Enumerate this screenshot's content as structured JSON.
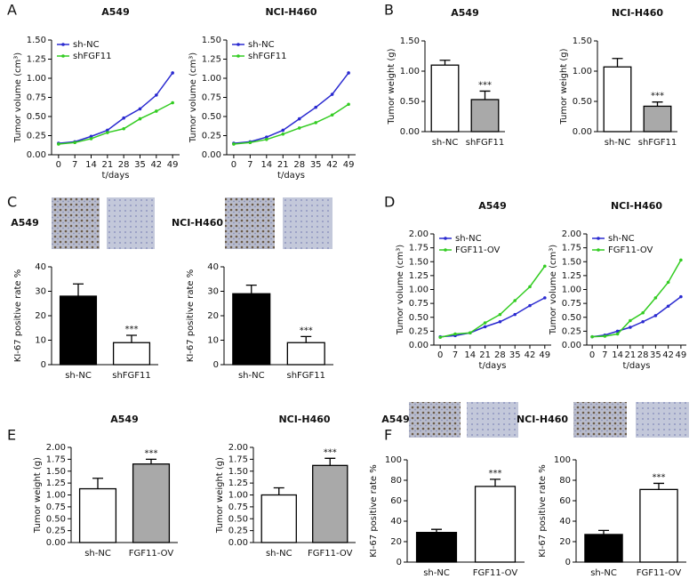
{
  "panel_labels": [
    "A",
    "B",
    "C",
    "D",
    "E",
    "F"
  ],
  "chart_data": [
    {
      "type": "line",
      "title": "A549",
      "xlabel": "t/days",
      "ylabel": "Tumor volume (cm³)",
      "legend": "upper left",
      "x": [
        0,
        7,
        14,
        21,
        28,
        35,
        42,
        49
      ],
      "xlim": [
        -3,
        52
      ],
      "xticks": [
        0,
        7,
        14,
        21,
        28,
        35,
        42,
        49
      ],
      "ylim": [
        0,
        1.5
      ],
      "yticks": [
        {
          "value": 0,
          "label": "0.00"
        },
        {
          "value": 0.25,
          "label": "0.25"
        },
        {
          "value": 0.5,
          "label": "0.50"
        },
        {
          "value": 0.75,
          "label": "0.75"
        },
        {
          "value": 1,
          "label": "1.00"
        },
        {
          "value": 1.25,
          "label": "1.25"
        },
        {
          "value": 1.5,
          "label": "1.50"
        }
      ],
      "series": [
        {
          "name": "sh-NC",
          "color": "#2a2ad0",
          "values": [
            0.15,
            0.17,
            0.24,
            0.32,
            0.48,
            0.6,
            0.78,
            1.07
          ]
        },
        {
          "name": "shFGF11",
          "color": "#33cc22",
          "values": [
            0.14,
            0.16,
            0.21,
            0.29,
            0.34,
            0.47,
            0.57,
            0.68
          ]
        }
      ]
    },
    {
      "type": "line",
      "title": "NCI-H460",
      "xlabel": "t/days",
      "ylabel": "Tumor volume (cm³)",
      "legend": "upper left",
      "x": [
        0,
        7,
        14,
        21,
        28,
        35,
        42,
        49
      ],
      "xlim": [
        -3,
        52
      ],
      "xticks": [
        0,
        7,
        14,
        21,
        28,
        35,
        42,
        49
      ],
      "ylim": [
        0,
        1.5
      ],
      "yticks": [
        {
          "value": 0,
          "label": "0.00"
        },
        {
          "value": 0.25,
          "label": "0.25"
        },
        {
          "value": 0.5,
          "label": "0.50"
        },
        {
          "value": 0.75,
          "label": "0.75"
        },
        {
          "value": 1,
          "label": "1.00"
        },
        {
          "value": 1.25,
          "label": "1.25"
        },
        {
          "value": 1.5,
          "label": "1.50"
        }
      ],
      "series": [
        {
          "name": "sh-NC",
          "color": "#2a2ad0",
          "values": [
            0.15,
            0.17,
            0.23,
            0.32,
            0.47,
            0.62,
            0.79,
            1.07
          ]
        },
        {
          "name": "shFGF11",
          "color": "#33cc22",
          "values": [
            0.14,
            0.16,
            0.2,
            0.27,
            0.35,
            0.42,
            0.52,
            0.66
          ]
        }
      ]
    },
    {
      "type": "bar",
      "title": "A549",
      "ylabel": "Tumor weight (g)",
      "annotation": "***",
      "categories": [
        "sh-NC",
        "shFGF11"
      ],
      "values": [
        1.1,
        0.53
      ],
      "errors": [
        0.08,
        0.14
      ],
      "colors": [
        "#ffffff",
        "#a9a9a9"
      ],
      "ylim": [
        0,
        1.5
      ],
      "yticks": [
        {
          "value": 0,
          "label": "0.00"
        },
        {
          "value": 0.5,
          "label": "0.50"
        },
        {
          "value": 1,
          "label": "1.00"
        },
        {
          "value": 1.5,
          "label": "1.50"
        }
      ]
    },
    {
      "type": "bar",
      "title": "NCI-H460",
      "ylabel": "Tumor weight (g)",
      "annotation": "***",
      "categories": [
        "sh-NC",
        "shFGF11"
      ],
      "values": [
        1.07,
        0.42
      ],
      "errors": [
        0.14,
        0.07
      ],
      "colors": [
        "#ffffff",
        "#a9a9a9"
      ],
      "ylim": [
        0,
        1.5
      ],
      "yticks": [
        {
          "value": 0,
          "label": "0.00"
        },
        {
          "value": 0.5,
          "label": "0.50"
        },
        {
          "value": 1,
          "label": "1.00"
        },
        {
          "value": 1.5,
          "label": "1.50"
        }
      ]
    },
    {
      "type": "bar",
      "image_label": "A549",
      "ylabel": "KI-67 positive rate %",
      "annotation": "***",
      "categories": [
        "sh-NC",
        "shFGF11"
      ],
      "values": [
        28,
        9
      ],
      "errors": [
        5,
        3
      ],
      "colors": [
        "#000000",
        "#ffffff"
      ],
      "ylim": [
        0,
        40
      ],
      "yticks": [
        0,
        10,
        20,
        30,
        40
      ]
    },
    {
      "type": "bar",
      "image_label": "NCI-H460",
      "ylabel": "KI-67 positive rate %",
      "annotation": "***",
      "categories": [
        "sh-NC",
        "shFGF11"
      ],
      "values": [
        29,
        9
      ],
      "errors": [
        3.5,
        2.5
      ],
      "colors": [
        "#000000",
        "#ffffff"
      ],
      "ylim": [
        0,
        40
      ],
      "yticks": [
        0,
        10,
        20,
        30,
        40
      ]
    },
    {
      "type": "line",
      "title": "A549",
      "xlabel": "t/days",
      "ylabel": "Tumor volume (cm³)",
      "legend": "upper left",
      "x": [
        0,
        7,
        14,
        21,
        28,
        35,
        42,
        49
      ],
      "xlim": [
        -3,
        52
      ],
      "xticks": [
        0,
        7,
        14,
        21,
        28,
        35,
        42,
        49
      ],
      "ylim": [
        0,
        2
      ],
      "yticks": [
        {
          "value": 0,
          "label": "0.00"
        },
        {
          "value": 0.25,
          "label": "0.25"
        },
        {
          "value": 0.5,
          "label": "0.50"
        },
        {
          "value": 0.75,
          "label": "0.75"
        },
        {
          "value": 1,
          "label": "1.00"
        },
        {
          "value": 1.25,
          "label": "1.25"
        },
        {
          "value": 1.5,
          "label": "1.50"
        },
        {
          "value": 1.75,
          "label": "1.75"
        },
        {
          "value": 2,
          "label": "2.00"
        }
      ],
      "series": [
        {
          "name": "sh-NC",
          "color": "#2a2ad0",
          "values": [
            0.15,
            0.17,
            0.22,
            0.33,
            0.42,
            0.55,
            0.71,
            0.85
          ]
        },
        {
          "name": "FGF11-OV",
          "color": "#33cc22",
          "values": [
            0.14,
            0.2,
            0.22,
            0.4,
            0.55,
            0.8,
            1.05,
            1.42
          ]
        }
      ]
    },
    {
      "type": "line",
      "title": "NCI-H460",
      "xlabel": "t/days",
      "ylabel": "Tumor volume (cm³)",
      "legend": "upper left",
      "x": [
        0,
        7,
        14,
        21,
        28,
        35,
        42,
        49
      ],
      "xlim": [
        -3,
        52
      ],
      "xticks": [
        0,
        7,
        14,
        21,
        28,
        35,
        42,
        49
      ],
      "ylim": [
        0,
        2
      ],
      "yticks": [
        {
          "value": 0,
          "label": "0.00"
        },
        {
          "value": 0.25,
          "label": "0.25"
        },
        {
          "value": 0.5,
          "label": "0.50"
        },
        {
          "value": 0.75,
          "label": "0.75"
        },
        {
          "value": 1,
          "label": "1.00"
        },
        {
          "value": 1.25,
          "label": "1.25"
        },
        {
          "value": 1.5,
          "label": "1.50"
        },
        {
          "value": 1.75,
          "label": "1.75"
        },
        {
          "value": 2,
          "label": "2.00"
        }
      ],
      "series": [
        {
          "name": "sh-NC",
          "color": "#2a2ad0",
          "values": [
            0.15,
            0.18,
            0.25,
            0.32,
            0.42,
            0.53,
            0.7,
            0.87
          ]
        },
        {
          "name": "FGF11-OV",
          "color": "#33cc22",
          "values": [
            0.15,
            0.16,
            0.2,
            0.44,
            0.58,
            0.85,
            1.13,
            1.53
          ]
        }
      ]
    },
    {
      "type": "bar",
      "title": "A549",
      "ylabel": "Tumor weight (g)",
      "annotation": "***",
      "categories": [
        "sh-NC",
        "FGF11-OV"
      ],
      "values": [
        1.13,
        1.65
      ],
      "errors": [
        0.22,
        0.1
      ],
      "colors": [
        "#ffffff",
        "#a9a9a9"
      ],
      "ylim": [
        0,
        2
      ],
      "yticks": [
        {
          "value": 0,
          "label": "0.00"
        },
        {
          "value": 0.25,
          "label": "0.25"
        },
        {
          "value": 0.5,
          "label": "0.50"
        },
        {
          "value": 0.75,
          "label": "0.75"
        },
        {
          "value": 1,
          "label": "1.00"
        },
        {
          "value": 1.25,
          "label": "1.25"
        },
        {
          "value": 1.5,
          "label": "1.50"
        },
        {
          "value": 1.75,
          "label": "1.75"
        },
        {
          "value": 2,
          "label": "2.00"
        }
      ]
    },
    {
      "type": "bar",
      "title": "NCI-H460",
      "ylabel": "Tumor weight (g)",
      "annotation": "***",
      "categories": [
        "sh-NC",
        "FGF11-OV"
      ],
      "values": [
        1.0,
        1.62
      ],
      "errors": [
        0.15,
        0.15
      ],
      "colors": [
        "#ffffff",
        "#a9a9a9"
      ],
      "ylim": [
        0,
        2
      ],
      "yticks": [
        {
          "value": 0,
          "label": "0.00"
        },
        {
          "value": 0.25,
          "label": "0.25"
        },
        {
          "value": 0.5,
          "label": "0.50"
        },
        {
          "value": 0.75,
          "label": "0.75"
        },
        {
          "value": 1,
          "label": "1.00"
        },
        {
          "value": 1.25,
          "label": "1.25"
        },
        {
          "value": 1.5,
          "label": "1.50"
        },
        {
          "value": 1.75,
          "label": "1.75"
        },
        {
          "value": 2,
          "label": "2.00"
        }
      ]
    },
    {
      "type": "bar",
      "image_label": "A549",
      "ylabel": "KI-67 positive rate %",
      "annotation": "***",
      "categories": [
        "sh-NC",
        "FGF11-OV"
      ],
      "values": [
        29,
        74
      ],
      "errors": [
        3,
        7
      ],
      "colors": [
        "#000000",
        "#ffffff"
      ],
      "ylim": [
        0,
        100
      ],
      "yticks": [
        0,
        20,
        40,
        60,
        80,
        100
      ]
    },
    {
      "type": "bar",
      "image_label": "NCI-H460",
      "ylabel": "KI-67 positive rate %",
      "annotation": "***",
      "categories": [
        "sh-NC",
        "FGF11-OV"
      ],
      "values": [
        27,
        71
      ],
      "errors": [
        4,
        6
      ],
      "colors": [
        "#000000",
        "#ffffff"
      ],
      "ylim": [
        0,
        100
      ],
      "yticks": [
        0,
        20,
        40,
        60,
        80,
        100
      ]
    }
  ]
}
